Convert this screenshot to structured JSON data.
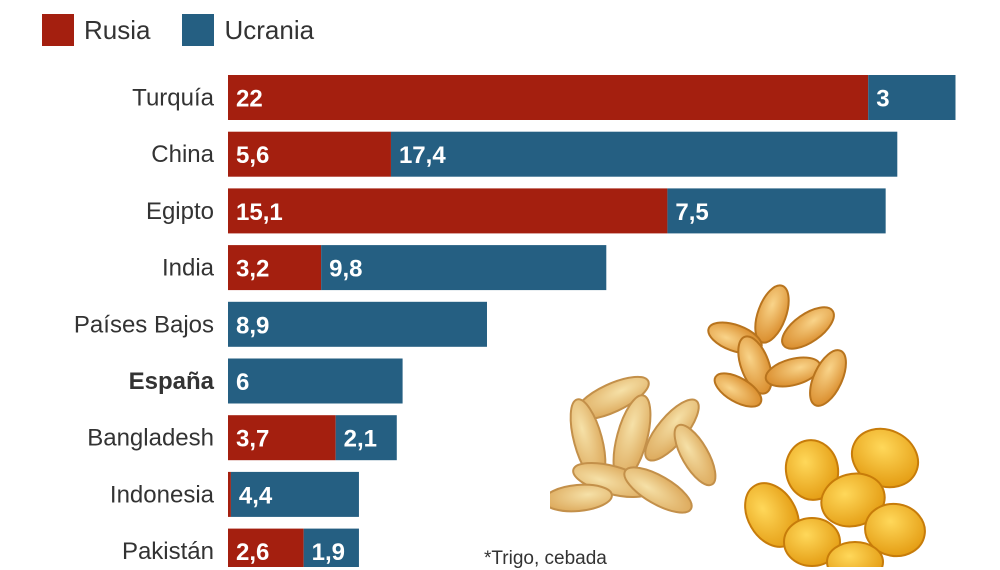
{
  "legend": {
    "russia_label": "Rusia",
    "ukraine_label": "Ucrania"
  },
  "colors": {
    "russia": "#a41f0f",
    "ukraine": "#255f82"
  },
  "footnote": "*Trigo, cebada",
  "chart_data": {
    "type": "bar",
    "orientation": "horizontal",
    "stacked": true,
    "categories": [
      "Turquía",
      "China",
      "Egipto",
      "India",
      "Países Bajos",
      "España",
      "Bangladesh",
      "Indonesia",
      "Pakistán"
    ],
    "highlighted_category": "España",
    "series": [
      {
        "name": "Rusia",
        "color": "#a41f0f",
        "values": [
          22,
          5.6,
          15.1,
          3.2,
          0,
          0,
          3.7,
          0.1,
          2.6
        ],
        "labels": [
          "22",
          "5,6",
          "15,1",
          "3,2",
          "",
          "",
          "3,7",
          "",
          "2,6"
        ]
      },
      {
        "name": "Ucrania",
        "color": "#255f82",
        "values": [
          3,
          17.4,
          7.5,
          9.8,
          8.9,
          6,
          2.1,
          4.4,
          1.9
        ],
        "labels": [
          "3",
          "17,4",
          "7,5",
          "9,8",
          "8,9",
          "6",
          "2,1",
          "4,4",
          "1,9"
        ]
      }
    ],
    "xlabel": "",
    "ylabel": "",
    "legend_position": "top-left",
    "grid": false
  }
}
